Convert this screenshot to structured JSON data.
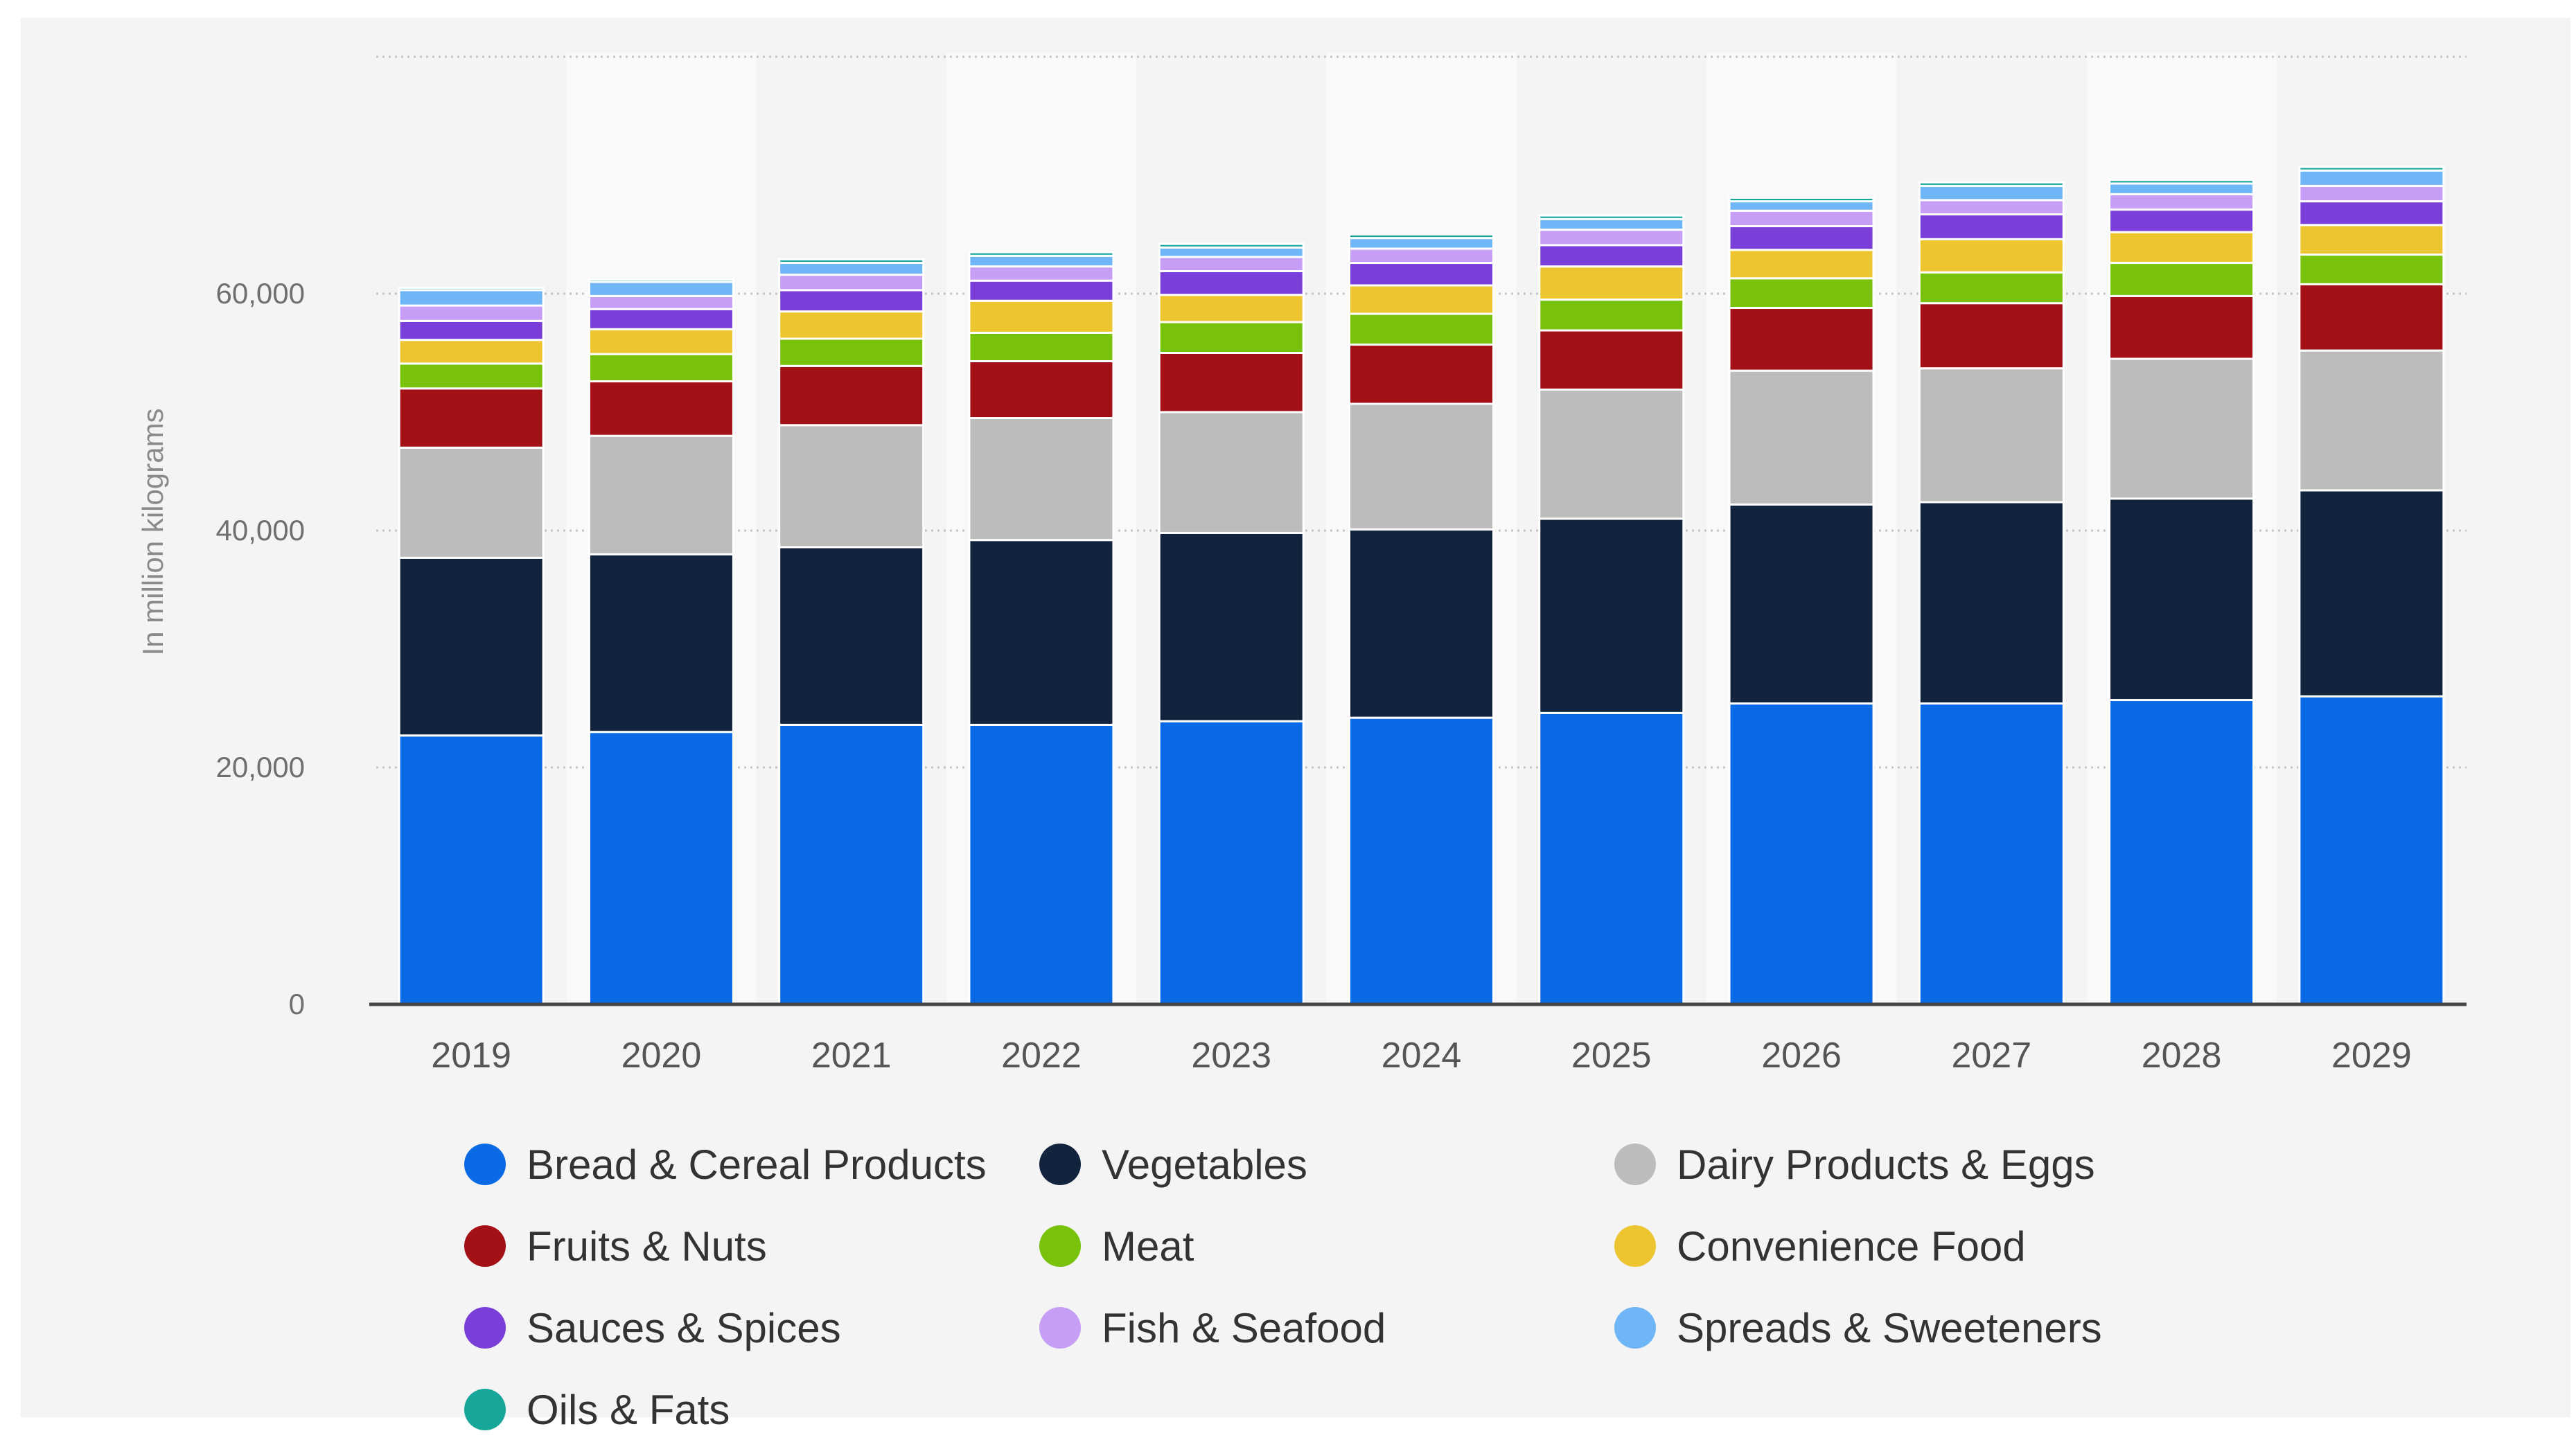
{
  "chart_data": {
    "type": "bar",
    "stacked": true,
    "title": "",
    "xlabel": "",
    "ylabel": "In million kilograms",
    "ylim": [
      0,
      80000
    ],
    "yticks": [
      0,
      20000,
      40000,
      60000
    ],
    "ytick_labels": [
      "0",
      "20,000",
      "40,000",
      "60,000"
    ],
    "grid": true,
    "legend_position": "bottom",
    "categories": [
      "2019",
      "2020",
      "2021",
      "2022",
      "2023",
      "2024",
      "2025",
      "2026",
      "2027",
      "2028",
      "2029"
    ],
    "series": [
      {
        "name": "Bread & Cereal Products",
        "color": "#0a6ae6",
        "values": [
          22700,
          23000,
          23600,
          23600,
          23900,
          24200,
          24600,
          25400,
          25400,
          25700,
          26000
        ]
      },
      {
        "name": "Vegetables",
        "color": "#12233d",
        "values": [
          15000,
          15000,
          15000,
          15600,
          15900,
          15900,
          16400,
          16800,
          17000,
          17000,
          17400
        ]
      },
      {
        "name": "Dairy Products & Eggs",
        "color": "#bcbcbc",
        "values": [
          9300,
          10000,
          10300,
          10300,
          10200,
          10600,
          10900,
          11300,
          11300,
          11800,
          11800
        ]
      },
      {
        "name": "Fruits & Nuts",
        "color": "#a31016",
        "values": [
          5000,
          4600,
          5000,
          4800,
          5000,
          5000,
          5000,
          5300,
          5500,
          5300,
          5600
        ]
      },
      {
        "name": "Meat",
        "color": "#78c20c",
        "values": [
          2100,
          2300,
          2300,
          2400,
          2600,
          2600,
          2600,
          2500,
          2600,
          2800,
          2500
        ]
      },
      {
        "name": "Convenience Food",
        "color": "#edc531",
        "values": [
          2000,
          2100,
          2300,
          2700,
          2300,
          2400,
          2800,
          2400,
          2800,
          2600,
          2500
        ]
      },
      {
        "name": "Sauces & Spices",
        "color": "#7b3fd9",
        "values": [
          1600,
          1700,
          1800,
          1700,
          2000,
          1900,
          1800,
          2000,
          2100,
          1900,
          2000
        ]
      },
      {
        "name": "Fish & Seafood",
        "color": "#c79ef5",
        "values": [
          1300,
          1100,
          1300,
          1200,
          1200,
          1200,
          1300,
          1300,
          1200,
          1300,
          1300
        ]
      },
      {
        "name": "Spreads & Sweeteners",
        "color": "#6eb6f5",
        "values": [
          1300,
          1200,
          1000,
          900,
          800,
          900,
          900,
          800,
          1200,
          900,
          1300
        ]
      },
      {
        "name": "Oils & Fats",
        "color": "#17a69a",
        "values": [
          200,
          200,
          300,
          300,
          300,
          300,
          300,
          300,
          300,
          300,
          300
        ]
      }
    ]
  }
}
